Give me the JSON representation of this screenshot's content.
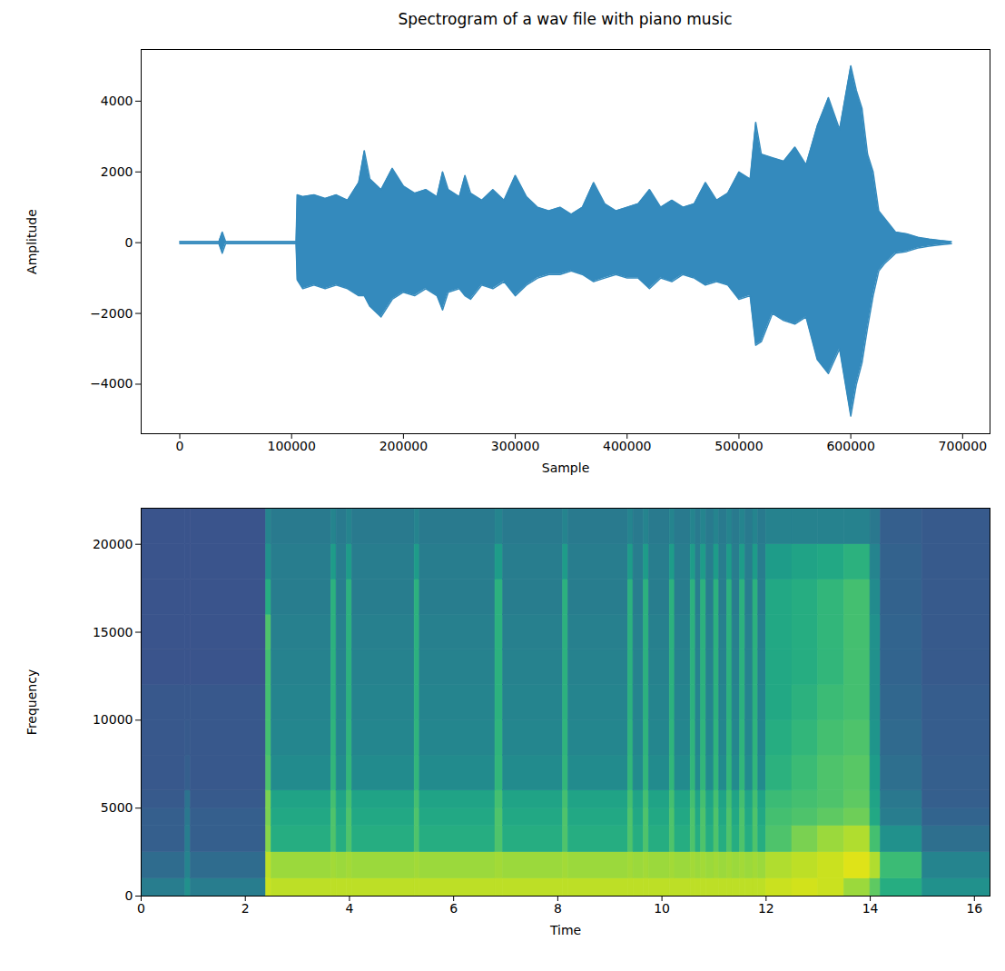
{
  "chart_data": [
    {
      "type": "line",
      "title": "Spectrogram of a wav file with piano music",
      "xlabel": "Sample",
      "ylabel": "Amplitude",
      "color": "#348abd",
      "grid": false,
      "xlim": [
        -34500,
        724500
      ],
      "xticks": [
        0,
        100000,
        200000,
        300000,
        400000,
        500000,
        600000,
        700000
      ],
      "ylim": [
        -5400,
        5460
      ],
      "yticks": [
        -4000,
        -2000,
        0,
        2000,
        4000
      ],
      "x": [
        0,
        10000,
        20000,
        30000,
        35000,
        38000,
        41000,
        50000,
        60000,
        70000,
        80000,
        90000,
        100000,
        104000,
        105000,
        110000,
        120000,
        130000,
        140000,
        150000,
        160000,
        165000,
        170000,
        180000,
        190000,
        200000,
        210000,
        220000,
        230000,
        235000,
        240000,
        250000,
        255000,
        260000,
        270000,
        280000,
        290000,
        300000,
        310000,
        320000,
        330000,
        340000,
        350000,
        360000,
        370000,
        380000,
        390000,
        400000,
        410000,
        420000,
        430000,
        440000,
        450000,
        460000,
        470000,
        480000,
        490000,
        500000,
        510000,
        515000,
        520000,
        530000,
        540000,
        550000,
        560000,
        570000,
        580000,
        590000,
        600000,
        605000,
        610000,
        615000,
        620000,
        625000,
        630000,
        640000,
        650000,
        660000,
        670000,
        680000,
        690000
      ],
      "max": [
        30,
        30,
        30,
        30,
        30,
        300,
        30,
        30,
        30,
        30,
        30,
        30,
        30,
        30,
        1350,
        1300,
        1350,
        1250,
        1350,
        1200,
        1700,
        2600,
        1800,
        1500,
        2100,
        1600,
        1400,
        1500,
        1300,
        2000,
        1500,
        1300,
        1900,
        1400,
        1200,
        1500,
        1200,
        1900,
        1300,
        1000,
        900,
        1000,
        800,
        1000,
        1700,
        1100,
        900,
        1000,
        1100,
        1500,
        1000,
        1200,
        1000,
        1100,
        1700,
        1200,
        1400,
        2000,
        1800,
        3400,
        2500,
        2400,
        2300,
        2700,
        2200,
        3300,
        4100,
        3200,
        5000,
        4300,
        3800,
        2500,
        2000,
        900,
        700,
        300,
        250,
        150,
        100,
        60,
        30
      ],
      "min": [
        -30,
        -30,
        -30,
        -30,
        -30,
        -300,
        -30,
        -30,
        -30,
        -30,
        -30,
        -30,
        -30,
        -30,
        -1050,
        -1300,
        -1200,
        -1300,
        -1200,
        -1300,
        -1500,
        -1500,
        -1800,
        -2100,
        -1600,
        -1400,
        -1500,
        -1300,
        -1500,
        -1900,
        -1400,
        -1300,
        -1500,
        -1600,
        -1200,
        -1300,
        -1100,
        -1500,
        -1200,
        -1000,
        -900,
        -900,
        -800,
        -900,
        -1100,
        -1000,
        -900,
        -1000,
        -1000,
        -1300,
        -1000,
        -1100,
        -900,
        -1000,
        -1200,
        -1100,
        -1200,
        -1600,
        -1500,
        -2900,
        -2800,
        -2000,
        -2200,
        -2300,
        -2100,
        -3300,
        -3700,
        -3000,
        -4900,
        -4000,
        -3400,
        -2400,
        -1500,
        -800,
        -600,
        -300,
        -250,
        -150,
        -100,
        -60,
        -30
      ]
    },
    {
      "type": "heatmap",
      "xlabel": "Time",
      "ylabel": "Frequency",
      "grid": false,
      "xlim": [
        0,
        16.3
      ],
      "xticks": [
        0,
        2,
        4,
        6,
        8,
        10,
        12,
        14,
        16
      ],
      "ylim": [
        0,
        22050
      ],
      "yticks": [
        0,
        5000,
        10000,
        15000,
        20000
      ],
      "zlim": [
        0,
        1
      ],
      "x_edges": [
        0,
        0.85,
        0.95,
        2.4,
        2.5,
        3.65,
        3.75,
        3.95,
        4.05,
        5.25,
        5.35,
        6.8,
        6.95,
        8.1,
        8.2,
        9.35,
        9.45,
        9.65,
        9.75,
        10.15,
        10.25,
        10.55,
        10.65,
        10.75,
        10.85,
        11.0,
        11.1,
        11.25,
        11.35,
        11.5,
        11.6,
        11.75,
        11.85,
        12.0,
        12.5,
        13.0,
        13.5,
        14.0,
        14.2,
        15.0,
        16.3
      ],
      "y_edges": [
        0,
        1000,
        2500,
        4000,
        5000,
        6000,
        8000,
        10000,
        12000,
        14000,
        16000,
        18000,
        20000,
        22050
      ],
      "cells": [
        [
          0.42,
          0.35,
          0.3,
          0.3,
          0.28,
          0.27,
          0.27,
          0.27,
          0.26,
          0.26,
          0.26,
          0.26,
          0.26
        ],
        [
          0.5,
          0.45,
          0.42,
          0.4,
          0.38,
          0.3,
          0.28,
          0.27,
          0.26,
          0.26,
          0.26,
          0.26,
          0.26
        ],
        [
          0.42,
          0.35,
          0.3,
          0.3,
          0.28,
          0.27,
          0.27,
          0.27,
          0.26,
          0.26,
          0.26,
          0.26,
          0.26
        ],
        [
          0.92,
          0.9,
          0.82,
          0.8,
          0.8,
          0.72,
          0.7,
          0.7,
          0.7,
          0.72,
          0.62,
          0.5,
          0.45
        ],
        [
          0.9,
          0.85,
          0.62,
          0.6,
          0.58,
          0.48,
          0.46,
          0.45,
          0.44,
          0.43,
          0.42,
          0.42,
          0.41
        ],
        [
          0.9,
          0.86,
          0.72,
          0.72,
          0.7,
          0.66,
          0.65,
          0.64,
          0.64,
          0.64,
          0.64,
          0.55,
          0.45
        ],
        [
          0.9,
          0.85,
          0.62,
          0.6,
          0.58,
          0.48,
          0.46,
          0.45,
          0.44,
          0.43,
          0.42,
          0.42,
          0.41
        ],
        [
          0.9,
          0.86,
          0.72,
          0.72,
          0.7,
          0.66,
          0.65,
          0.64,
          0.64,
          0.64,
          0.64,
          0.55,
          0.45
        ],
        [
          0.9,
          0.85,
          0.62,
          0.6,
          0.58,
          0.48,
          0.46,
          0.45,
          0.44,
          0.43,
          0.42,
          0.42,
          0.41
        ],
        [
          0.9,
          0.86,
          0.72,
          0.72,
          0.7,
          0.66,
          0.65,
          0.64,
          0.64,
          0.64,
          0.64,
          0.55,
          0.45
        ],
        [
          0.9,
          0.85,
          0.62,
          0.6,
          0.58,
          0.48,
          0.46,
          0.45,
          0.44,
          0.43,
          0.42,
          0.42,
          0.41
        ],
        [
          0.9,
          0.86,
          0.72,
          0.72,
          0.7,
          0.66,
          0.65,
          0.64,
          0.64,
          0.64,
          0.64,
          0.55,
          0.45
        ],
        [
          0.9,
          0.85,
          0.62,
          0.6,
          0.58,
          0.48,
          0.46,
          0.45,
          0.44,
          0.43,
          0.42,
          0.42,
          0.41
        ],
        [
          0.9,
          0.86,
          0.72,
          0.72,
          0.7,
          0.66,
          0.65,
          0.64,
          0.64,
          0.64,
          0.64,
          0.55,
          0.45
        ],
        [
          0.9,
          0.85,
          0.62,
          0.6,
          0.58,
          0.48,
          0.46,
          0.45,
          0.44,
          0.43,
          0.42,
          0.42,
          0.41
        ],
        [
          0.9,
          0.86,
          0.72,
          0.72,
          0.7,
          0.66,
          0.65,
          0.64,
          0.64,
          0.64,
          0.64,
          0.55,
          0.45
        ],
        [
          0.9,
          0.85,
          0.62,
          0.6,
          0.58,
          0.48,
          0.46,
          0.45,
          0.44,
          0.43,
          0.42,
          0.42,
          0.41
        ],
        [
          0.9,
          0.86,
          0.72,
          0.72,
          0.7,
          0.66,
          0.65,
          0.64,
          0.64,
          0.64,
          0.64,
          0.55,
          0.45
        ],
        [
          0.9,
          0.85,
          0.62,
          0.6,
          0.58,
          0.48,
          0.46,
          0.45,
          0.44,
          0.43,
          0.42,
          0.42,
          0.41
        ],
        [
          0.9,
          0.86,
          0.72,
          0.72,
          0.7,
          0.66,
          0.65,
          0.64,
          0.64,
          0.64,
          0.64,
          0.55,
          0.45
        ],
        [
          0.9,
          0.85,
          0.62,
          0.6,
          0.58,
          0.48,
          0.46,
          0.45,
          0.44,
          0.43,
          0.42,
          0.42,
          0.41
        ],
        [
          0.9,
          0.86,
          0.72,
          0.72,
          0.7,
          0.66,
          0.65,
          0.64,
          0.64,
          0.64,
          0.64,
          0.55,
          0.45
        ],
        [
          0.9,
          0.85,
          0.62,
          0.6,
          0.58,
          0.48,
          0.46,
          0.45,
          0.44,
          0.43,
          0.42,
          0.42,
          0.41
        ],
        [
          0.9,
          0.86,
          0.72,
          0.72,
          0.7,
          0.66,
          0.65,
          0.64,
          0.64,
          0.64,
          0.64,
          0.55,
          0.45
        ],
        [
          0.9,
          0.85,
          0.62,
          0.6,
          0.58,
          0.48,
          0.46,
          0.45,
          0.44,
          0.43,
          0.42,
          0.42,
          0.41
        ],
        [
          0.9,
          0.86,
          0.72,
          0.72,
          0.7,
          0.66,
          0.65,
          0.64,
          0.64,
          0.64,
          0.64,
          0.55,
          0.45
        ],
        [
          0.9,
          0.85,
          0.62,
          0.6,
          0.58,
          0.48,
          0.46,
          0.45,
          0.44,
          0.43,
          0.42,
          0.42,
          0.41
        ],
        [
          0.9,
          0.86,
          0.72,
          0.72,
          0.7,
          0.66,
          0.65,
          0.64,
          0.64,
          0.64,
          0.64,
          0.55,
          0.45
        ],
        [
          0.9,
          0.85,
          0.62,
          0.6,
          0.58,
          0.48,
          0.46,
          0.45,
          0.44,
          0.43,
          0.42,
          0.42,
          0.41
        ],
        [
          0.9,
          0.86,
          0.72,
          0.72,
          0.7,
          0.66,
          0.65,
          0.64,
          0.64,
          0.64,
          0.64,
          0.55,
          0.45
        ],
        [
          0.9,
          0.85,
          0.62,
          0.6,
          0.58,
          0.48,
          0.46,
          0.45,
          0.44,
          0.43,
          0.42,
          0.42,
          0.41
        ],
        [
          0.9,
          0.86,
          0.72,
          0.72,
          0.7,
          0.66,
          0.65,
          0.64,
          0.64,
          0.64,
          0.64,
          0.55,
          0.45
        ],
        [
          0.9,
          0.85,
          0.62,
          0.6,
          0.58,
          0.48,
          0.46,
          0.45,
          0.44,
          0.43,
          0.42,
          0.42,
          0.41
        ],
        [
          0.92,
          0.88,
          0.72,
          0.7,
          0.68,
          0.64,
          0.62,
          0.6,
          0.6,
          0.6,
          0.6,
          0.55,
          0.44
        ],
        [
          0.93,
          0.9,
          0.8,
          0.72,
          0.7,
          0.68,
          0.66,
          0.64,
          0.62,
          0.62,
          0.62,
          0.58,
          0.44
        ],
        [
          0.92,
          0.92,
          0.85,
          0.75,
          0.72,
          0.72,
          0.7,
          0.68,
          0.66,
          0.66,
          0.66,
          0.6,
          0.44
        ],
        [
          0.85,
          0.95,
          0.88,
          0.78,
          0.75,
          0.74,
          0.72,
          0.7,
          0.7,
          0.7,
          0.7,
          0.64,
          0.44
        ],
        [
          0.75,
          0.88,
          0.7,
          0.6,
          0.58,
          0.55,
          0.52,
          0.5,
          0.5,
          0.5,
          0.48,
          0.45,
          0.4
        ],
        [
          0.62,
          0.68,
          0.5,
          0.42,
          0.4,
          0.36,
          0.34,
          0.33,
          0.32,
          0.32,
          0.31,
          0.31,
          0.3
        ],
        [
          0.5,
          0.45,
          0.36,
          0.32,
          0.3,
          0.3,
          0.29,
          0.29,
          0.28,
          0.28,
          0.28,
          0.28,
          0.28
        ]
      ]
    }
  ]
}
